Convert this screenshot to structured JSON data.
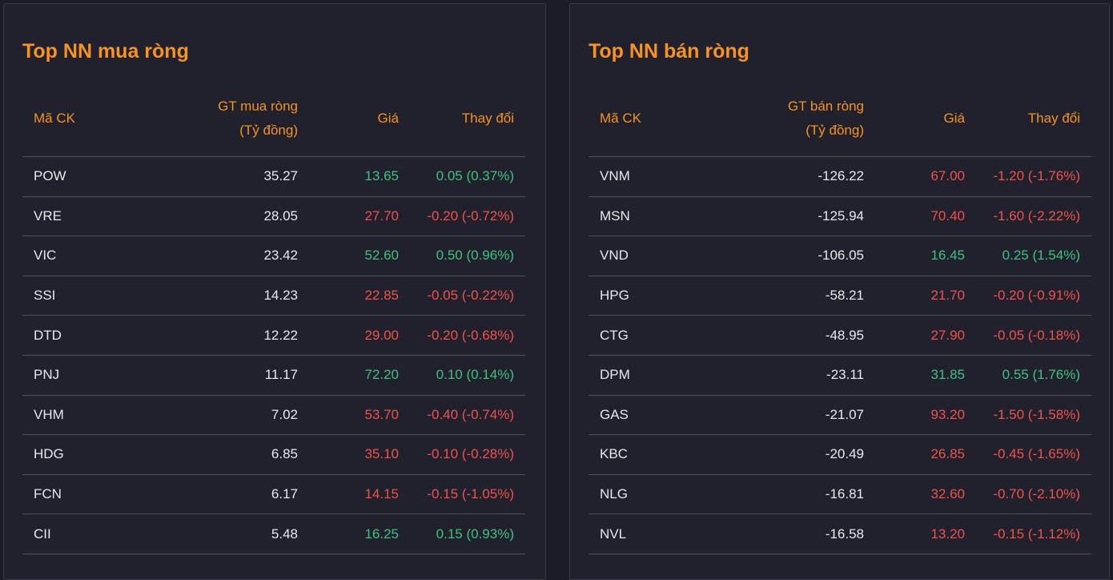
{
  "panels": [
    {
      "title": "Top NN mua ròng",
      "headers": [
        "Mã CK",
        [
          "GT mua ròng",
          "(Tỷ đồng)"
        ],
        "Giá",
        "Thay đổi"
      ],
      "rows": [
        [
          "POW",
          "35.27",
          "13.65",
          "0.05 (0.37%)"
        ],
        [
          "VRE",
          "28.05",
          "27.70",
          "-0.20 (-0.72%)"
        ],
        [
          "VIC",
          "23.42",
          "52.60",
          "0.50 (0.96%)"
        ],
        [
          "SSI",
          "14.23",
          "22.85",
          "-0.05 (-0.22%)"
        ],
        [
          "DTD",
          "12.22",
          "29.00",
          "-0.20 (-0.68%)"
        ],
        [
          "PNJ",
          "11.17",
          "72.20",
          "0.10 (0.14%)"
        ],
        [
          "VHM",
          "7.02",
          "53.70",
          "-0.40 (-0.74%)"
        ],
        [
          "HDG",
          "6.85",
          "35.10",
          "-0.10 (-0.28%)"
        ],
        [
          "FCN",
          "6.17",
          "14.15",
          "-0.15 (-1.05%)"
        ],
        [
          "CII",
          "5.48",
          "16.25",
          "0.15 (0.93%)"
        ]
      ]
    },
    {
      "title": "Top NN bán ròng",
      "headers": [
        "Mã CK",
        [
          "GT bán ròng",
          "(Tỷ đồng)"
        ],
        "Giá",
        "Thay đổi"
      ],
      "rows": [
        [
          "VNM",
          "-126.22",
          "67.00",
          "-1.20 (-1.76%)"
        ],
        [
          "MSN",
          "-125.94",
          "70.40",
          "-1.60 (-2.22%)"
        ],
        [
          "VND",
          "-106.05",
          "16.45",
          "0.25 (1.54%)"
        ],
        [
          "HPG",
          "-58.21",
          "21.70",
          "-0.20 (-0.91%)"
        ],
        [
          "CTG",
          "-48.95",
          "27.90",
          "-0.05 (-0.18%)"
        ],
        [
          "DPM",
          "-23.11",
          "31.85",
          "0.55 (1.76%)"
        ],
        [
          "GAS",
          "-21.07",
          "93.20",
          "-1.50 (-1.58%)"
        ],
        [
          "KBC",
          "-20.49",
          "26.85",
          "-0.45 (-1.65%)"
        ],
        [
          "NLG",
          "-16.81",
          "32.60",
          "-0.70 (-2.10%)"
        ],
        [
          "NVL",
          "-16.58",
          "13.20",
          "-0.15 (-1.12%)"
        ]
      ]
    }
  ]
}
